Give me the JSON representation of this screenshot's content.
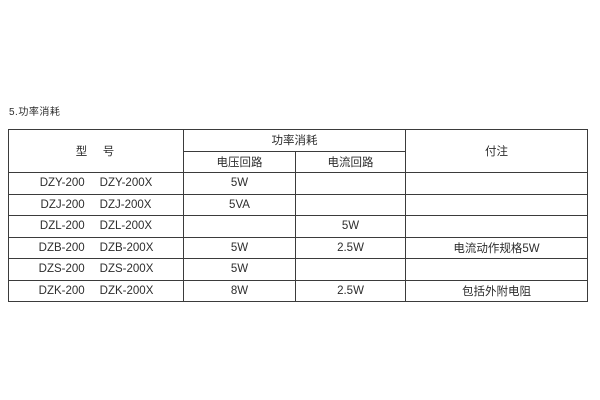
{
  "page": {
    "section_title": "5.功率消耗"
  },
  "table": {
    "headers": {
      "model": "型　号",
      "power_group": "功率消耗",
      "voltage_circuit": "电压回路",
      "current_circuit": "电流回路",
      "notes": "付注"
    },
    "rows": [
      {
        "model_a": "DZY-200",
        "model_b": "DZY-200X",
        "voltage": "5W",
        "current": "",
        "note": ""
      },
      {
        "model_a": "DZJ-200",
        "model_b": "DZJ-200X",
        "voltage": "5VA",
        "current": "",
        "note": ""
      },
      {
        "model_a": "DZL-200",
        "model_b": "DZL-200X",
        "voltage": "",
        "current": "5W",
        "note": ""
      },
      {
        "model_a": "DZB-200",
        "model_b": "DZB-200X",
        "voltage": "5W",
        "current": "2.5W",
        "note": "电流动作规格5W"
      },
      {
        "model_a": "DZS-200",
        "model_b": "DZS-200X",
        "voltage": "5W",
        "current": "",
        "note": ""
      },
      {
        "model_a": "DZK-200",
        "model_b": "DZK-200X",
        "voltage": "8W",
        "current": "2.5W",
        "note": "包括外附电阻"
      }
    ],
    "colors": {
      "border": "#3b3b3b",
      "text": "#2d2d2d",
      "background": "#ffffff"
    }
  }
}
